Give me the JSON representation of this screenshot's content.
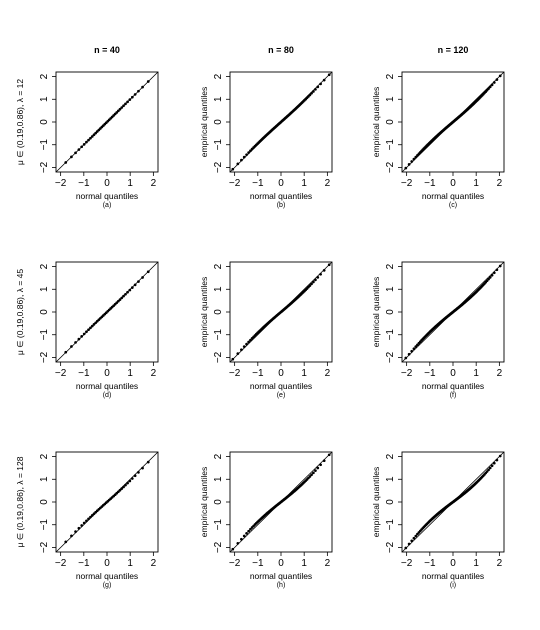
{
  "chart_data": {
    "type": "scatter",
    "column_titles": [
      "n = 40",
      "n = 80",
      "n = 120"
    ],
    "row_labels": [
      "μ ∈ (0.19,0.86), λ = 12",
      "μ ∈ (0.19,0.86), λ = 45",
      "μ ∈ (0.19,0.86), λ = 128"
    ],
    "xlabel": "normal quantiles",
    "ylabel": "empirical quantiles",
    "xticks": [
      -2,
      -1,
      0,
      1,
      2
    ],
    "yticks": [
      2,
      1,
      0,
      -1,
      -2
    ],
    "xlim": [
      -2.2,
      2.2
    ],
    "ylim": [
      -2.2,
      2.2
    ],
    "reference_line": "y = x",
    "panels": [
      {
        "label": "(a)",
        "n": 40,
        "lambda": 12,
        "deviation": 0.0
      },
      {
        "label": "(b)",
        "n": 80,
        "lambda": 12,
        "deviation": 0.06
      },
      {
        "label": "(c)",
        "n": 120,
        "lambda": 12,
        "deviation": 0.09
      },
      {
        "label": "(d)",
        "n": 40,
        "lambda": 45,
        "deviation": 0.02
      },
      {
        "label": "(e)",
        "n": 80,
        "lambda": 45,
        "deviation": 0.09
      },
      {
        "label": "(f)",
        "n": 120,
        "lambda": 45,
        "deviation": 0.12
      },
      {
        "label": "(g)",
        "n": 40,
        "lambda": 128,
        "deviation": 0.06
      },
      {
        "label": "(h)",
        "n": 80,
        "lambda": 128,
        "deviation": 0.13
      },
      {
        "label": "(i)",
        "n": 120,
        "lambda": 128,
        "deviation": 0.16
      }
    ]
  }
}
